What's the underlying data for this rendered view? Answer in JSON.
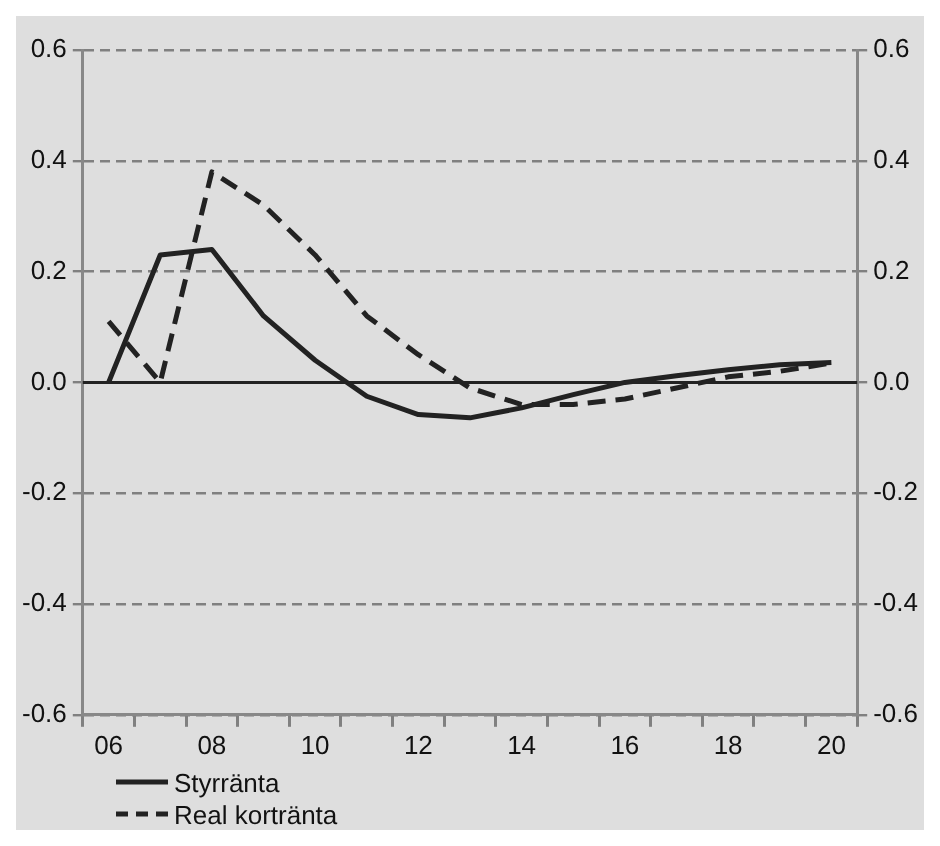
{
  "chart_data": {
    "type": "line",
    "categories": [
      "06",
      null,
      "08",
      null,
      "10",
      null,
      "12",
      null,
      "14",
      null,
      "16",
      null,
      "18",
      null,
      "20"
    ],
    "series": [
      {
        "name": "Styrränta",
        "color": "#222222",
        "line_style": "solid",
        "values": [
          0,
          0.23,
          0.24,
          0.12,
          0.04,
          -0.025,
          -0.058,
          -0.064,
          -0.046,
          -0.022,
          0.0,
          0.012,
          0.023,
          0.032,
          0.036
        ]
      },
      {
        "name": "Real kortränta",
        "color": "#222222",
        "line_style": "dashed",
        "values": [
          0.11,
          0,
          0.38,
          0.32,
          0.23,
          0.12,
          0.05,
          -0.01,
          -0.04,
          -0.04,
          -0.03,
          -0.01,
          0.01,
          0.02,
          0.035
        ]
      }
    ],
    "ylim": [
      -0.6,
      0.6
    ],
    "yticks": [
      -0.6,
      -0.4,
      -0.2,
      {
        "value": 0,
        "label": "0.0"
      },
      0.2,
      0.4,
      0.6
    ],
    "y2lim": [
      -0.6,
      0.6
    ],
    "y2ticks": [
      -0.6,
      -0.4,
      -0.2,
      {
        "value": 0,
        "label": "0.0"
      },
      0.2,
      0.4,
      0.6
    ],
    "ref_lines": [
      {
        "axis": "y",
        "value": 0,
        "color": "#222222"
      }
    ],
    "grid": "y",
    "legend": "bottom left",
    "marker": "none"
  }
}
